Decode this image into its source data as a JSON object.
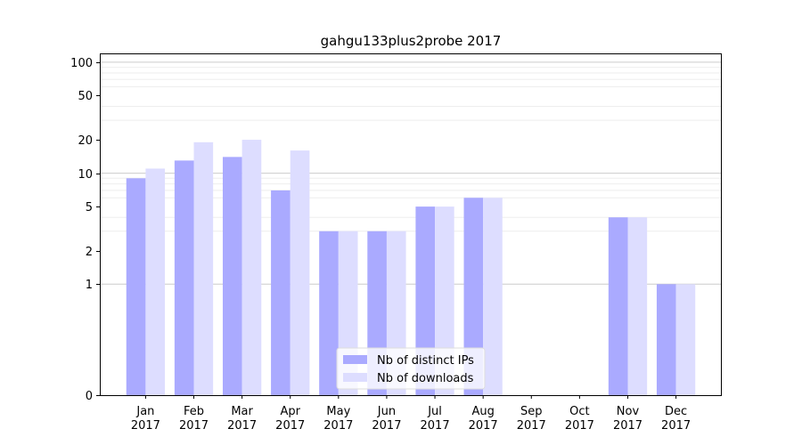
{
  "chart_data": {
    "type": "bar",
    "title": "gahgu133plus2probe 2017",
    "xlabel": "",
    "ylabel": "",
    "yscale": "symlog",
    "ylim": [
      0,
      120
    ],
    "yticks": [
      0,
      1,
      2,
      5,
      10,
      20,
      50,
      100
    ],
    "categories": [
      [
        "Jan",
        "2017"
      ],
      [
        "Feb",
        "2017"
      ],
      [
        "Mar",
        "2017"
      ],
      [
        "Apr",
        "2017"
      ],
      [
        "May",
        "2017"
      ],
      [
        "Jun",
        "2017"
      ],
      [
        "Jul",
        "2017"
      ],
      [
        "Aug",
        "2017"
      ],
      [
        "Sep",
        "2017"
      ],
      [
        "Oct",
        "2017"
      ],
      [
        "Nov",
        "2017"
      ],
      [
        "Dec",
        "2017"
      ]
    ],
    "series": [
      {
        "name": "Nb of distinct IPs",
        "color": "#aaaaff",
        "values": [
          9,
          13,
          14,
          7,
          3,
          3,
          5,
          6,
          0,
          0,
          4,
          1
        ]
      },
      {
        "name": "Nb of downloads",
        "color": "#ddddff",
        "values": [
          11,
          19,
          20,
          16,
          3,
          3,
          5,
          6,
          0,
          0,
          4,
          1
        ]
      }
    ],
    "legend_position": "bottom-center",
    "grid": true
  }
}
